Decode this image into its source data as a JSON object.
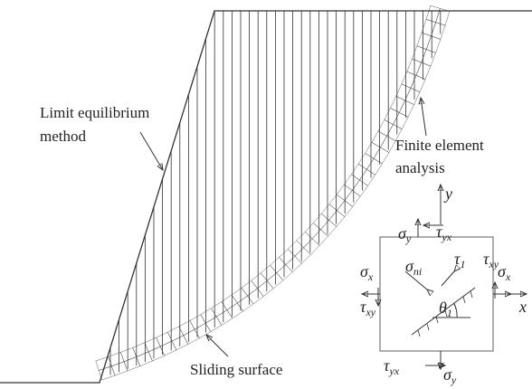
{
  "labels": {
    "limit_equilibrium": [
      "Limit equilibrium",
      "method"
    ],
    "finite_element": [
      "Finite element",
      "analysis"
    ],
    "sliding_surface": "Sliding surface",
    "axis_y": "y",
    "axis_x": "x"
  },
  "stress": {
    "sigma_y_top": {
      "sym": "σ",
      "sub": "y"
    },
    "tau_yx_top": {
      "sym": "τ",
      "sub": "yx"
    },
    "sigma_x_left": {
      "sym": "σ",
      "sub": "x"
    },
    "tau_xy_left": {
      "sym": "τ",
      "sub": "xy"
    },
    "tau_xy_right": {
      "sym": "τ",
      "sub": "xy"
    },
    "sigma_x_right": {
      "sym": "σ",
      "sub": "x"
    },
    "tau_yx_bottom": {
      "sym": "τ",
      "sub": "yx"
    },
    "sigma_y_bottom": {
      "sym": "σ",
      "sub": "y"
    },
    "sigma_n": {
      "sym": "σ",
      "sub": "ni"
    },
    "tau_i": {
      "sym": "τ",
      "sub": "1"
    },
    "theta": {
      "sym": "θ",
      "sub": "1"
    }
  }
}
